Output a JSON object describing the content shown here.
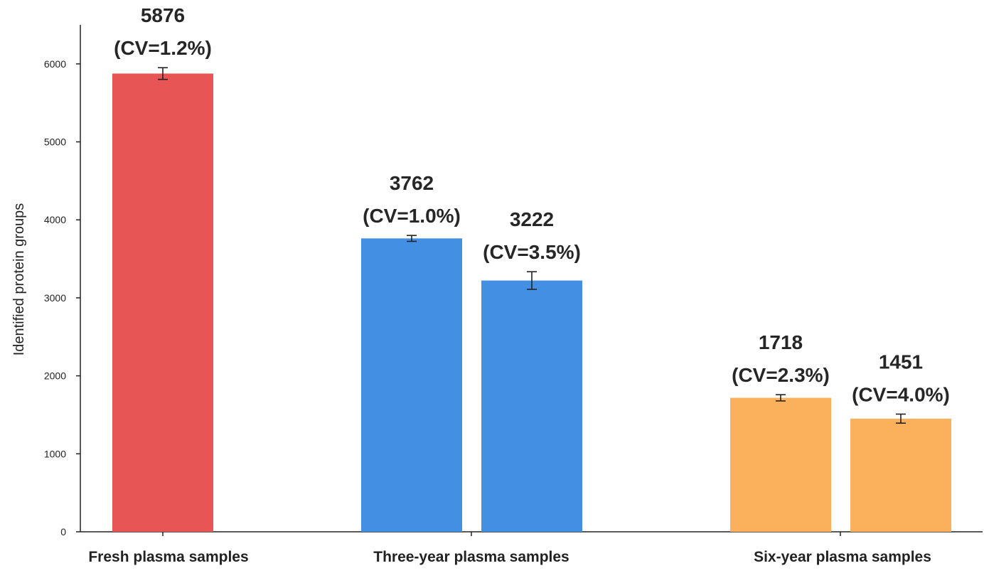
{
  "chart_data": {
    "type": "bar",
    "title": "",
    "xlabel": "",
    "ylabel": "Identified protein groups",
    "ylim": [
      0,
      6500
    ],
    "yticks": [
      0,
      1000,
      2000,
      3000,
      4000,
      5000,
      6000
    ],
    "grid": false,
    "legend": "none",
    "categories": [
      "Fresh plasma samples",
      "Three-year plasma samples",
      "Six-year plasma samples"
    ],
    "bars": [
      {
        "category": "Fresh plasma samples",
        "value": 5876,
        "error": 75,
        "label_value": "5876",
        "label_cv": "(CV=1.2%)",
        "color": "#e85555"
      },
      {
        "category": "Three-year plasma samples",
        "value": 3762,
        "error": 38,
        "label_value": "3762",
        "label_cv": "(CV=1.0%)",
        "color": "#428fe3"
      },
      {
        "category": "Three-year plasma samples",
        "value": 3222,
        "error": 113,
        "label_value": "3222",
        "label_cv": "(CV=3.5%)",
        "color": "#428fe3"
      },
      {
        "category": "Six-year plasma samples",
        "value": 1718,
        "error": 40,
        "label_value": "1718",
        "label_cv": "(CV=2.3%)",
        "color": "#fbb05c"
      },
      {
        "category": "Six-year plasma samples",
        "value": 1451,
        "error": 58,
        "label_value": "1451",
        "label_cv": "(CV=4.0%)",
        "color": "#fbb05c"
      }
    ]
  }
}
